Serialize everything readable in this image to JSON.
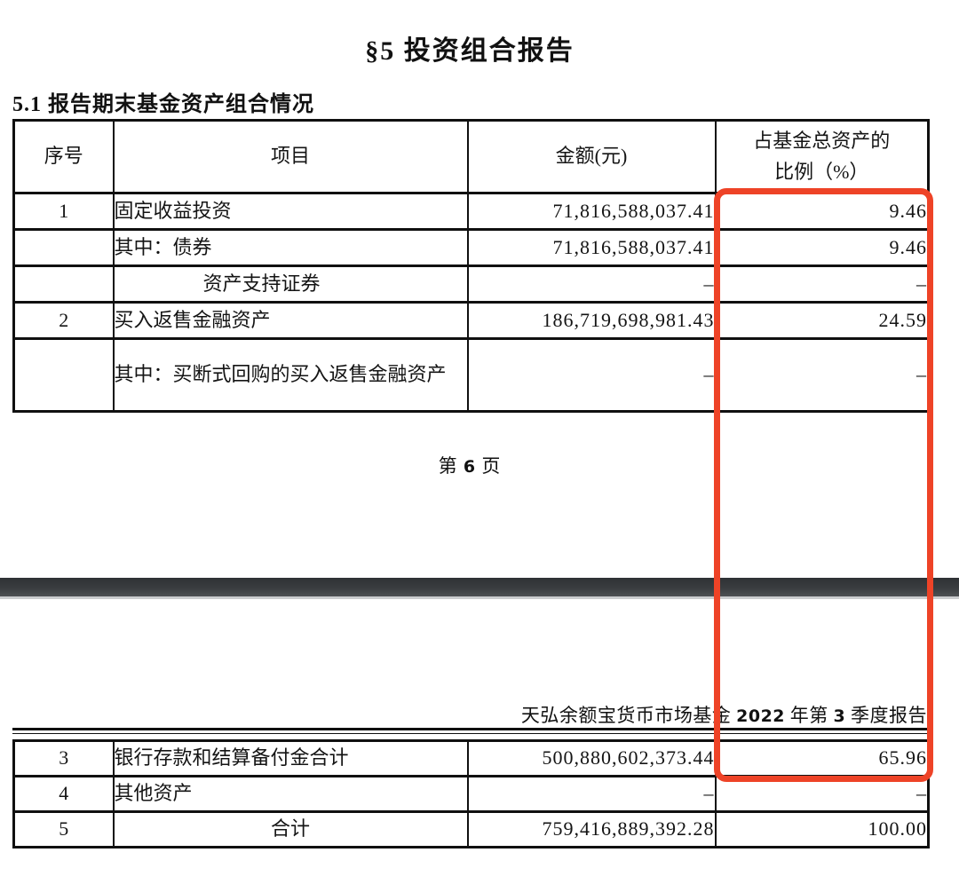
{
  "document": {
    "title": "§5  投资组合报告",
    "section_heading": "5.1 报告期末基金资产组合情况",
    "page_footer": {
      "prefix": "第 ",
      "page_number": "6",
      "suffix": " 页"
    },
    "next_page_header": {
      "fund_name": "天弘余额宝货币市场基金 ",
      "year": "2022",
      "mid": " 年第 ",
      "quarter": "3",
      "suffix": " 季度报告"
    }
  },
  "table": {
    "columns": {
      "no": "序号",
      "item": "项目",
      "amount": "金额(元)",
      "pct_line1": "占基金总资产的",
      "pct_line2": "比例（%）"
    },
    "rows_page1": [
      {
        "no": "1",
        "item": "固定收益投资",
        "amount": "71,816,588,037.41",
        "pct": "9.46"
      },
      {
        "no": "",
        "item": "其中：债券",
        "amount": "71,816,588,037.41",
        "pct": "9.46"
      },
      {
        "no": "",
        "item": "资产支持证券",
        "amount": "–",
        "pct": "–"
      },
      {
        "no": "2",
        "item": "买入返售金融资产",
        "amount": "186,719,698,981.43",
        "pct": "24.59"
      },
      {
        "no": "",
        "item": "其中：买断式回购的买入返售金融资产",
        "amount": "–",
        "pct": "–"
      }
    ],
    "rows_page2": [
      {
        "no": "3",
        "item": "银行存款和结算备付金合计",
        "amount": "500,880,602,373.44",
        "pct": "65.96"
      },
      {
        "no": "4",
        "item": "其他资产",
        "amount": "–",
        "pct": "–"
      },
      {
        "no": "5",
        "item": "合计",
        "amount": "759,416,889,392.28",
        "pct": "100.00"
      }
    ]
  },
  "annotation": {
    "highlight_color": "#ee4327",
    "highlighted_column": "占基金总资产的比例（%）"
  },
  "colors": {
    "page_separator_bar": "#3a3d40",
    "table_border": "#101010"
  }
}
